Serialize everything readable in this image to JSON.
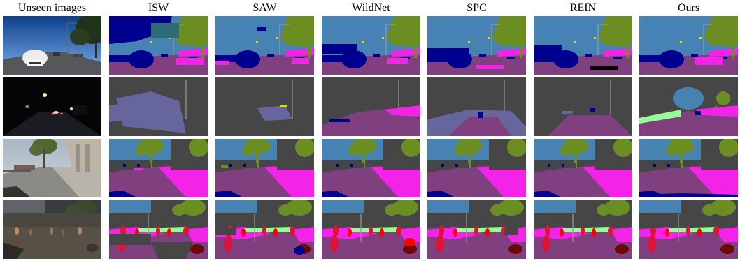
{
  "columns": [
    "Unseen images",
    "ISW",
    "SAW",
    "WildNet",
    "SPC",
    "REIN",
    "Ours"
  ],
  "rows": [
    {
      "scene": "day-highway"
    },
    {
      "scene": "night-street"
    },
    {
      "scene": "synthetic-street"
    },
    {
      "scene": "dusk-crowd"
    }
  ],
  "palette": {
    "road": "#80407f",
    "sidewalk": "#f423e8",
    "building": "#464646",
    "sky": "#4682b4",
    "vegetation": "#6b8e23",
    "terrain": "#98fb98",
    "car": "#00008e",
    "person": "#dc143c",
    "rider": "#ff0000",
    "pole": "#999999",
    "traffic-sign": "#dcdc00",
    "wall": "#66669c"
  }
}
